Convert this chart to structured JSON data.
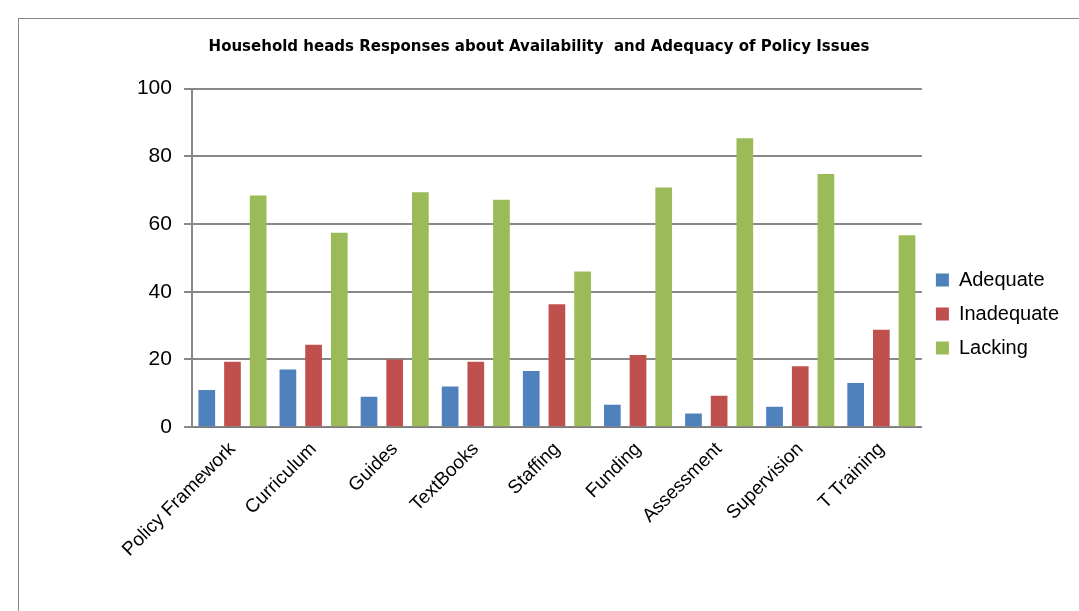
{
  "chart_data": {
    "type": "bar",
    "title": "Household heads Responses about Availability  and Adequacy of Policy Issues",
    "categories": [
      "Policy Framework",
      "Curriculum",
      "Guides",
      "TextBooks",
      "Staffing",
      "Funding",
      "Assessment",
      "Supervision",
      "T Training"
    ],
    "series": [
      {
        "name": "Adequate",
        "color": "#4f81bd",
        "values": [
          11,
          17,
          9,
          12,
          16.6,
          6.6,
          4,
          6,
          13
        ]
      },
      {
        "name": "Inadequate",
        "color": "#c0504d",
        "values": [
          19.3,
          24.3,
          20,
          19.3,
          36.3,
          21.3,
          9.3,
          18,
          28.8
        ]
      },
      {
        "name": "Lacking",
        "color": "#9bbb59",
        "values": [
          68.4,
          57.4,
          69.4,
          67.2,
          46,
          70.8,
          85.3,
          74.8,
          56.7
        ]
      }
    ],
    "ylim": [
      0,
      100
    ],
    "yticks": [
      0,
      20,
      40,
      60,
      80,
      100
    ],
    "grid": "y",
    "legend": "right"
  }
}
